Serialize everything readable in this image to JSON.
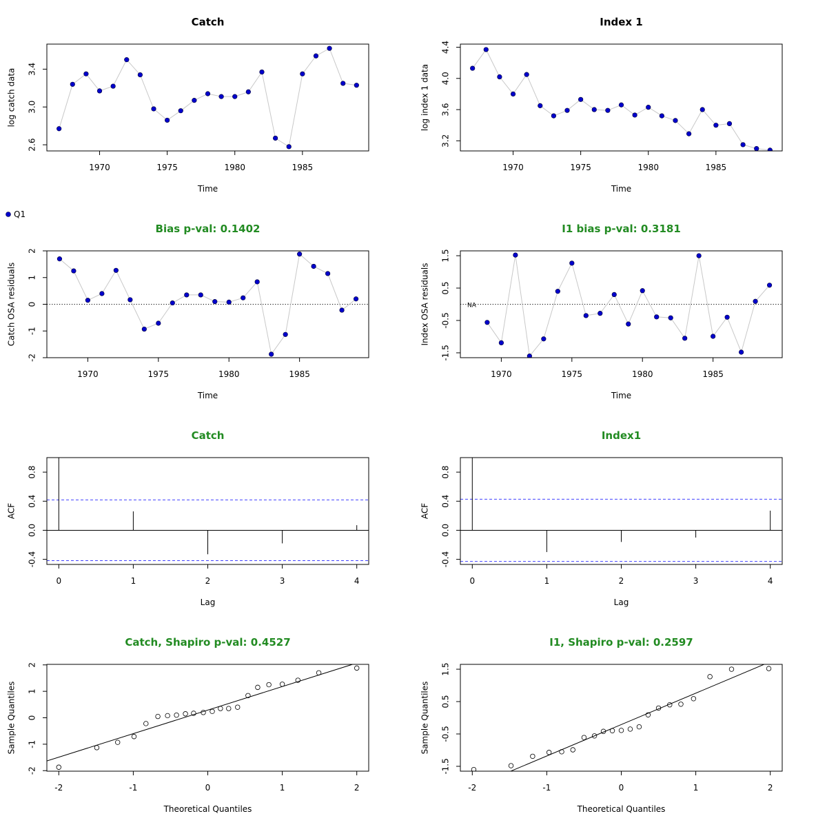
{
  "colors": {
    "point_fill": "#0000cc",
    "line": "#c8c8c8",
    "title_green": "#228b22",
    "ci_blue": "#4040ff",
    "axis": "#000000"
  },
  "legend": {
    "label": "Q1"
  },
  "chart_data": [
    {
      "id": "catch-series",
      "type": "line",
      "title": "Catch",
      "title_color": "black",
      "xlabel": "Time",
      "ylabel": "log catch data",
      "xlim": [
        1966.1,
        1989.9
      ],
      "ylim": [
        2.535,
        3.665
      ],
      "xticks": [
        1970,
        1975,
        1980,
        1985
      ],
      "xtick_labels": [
        "1970",
        "1975",
        "1980",
        "1985"
      ],
      "yticks": [
        2.6,
        3.0,
        3.4
      ],
      "ytick_labels": [
        "2.6",
        "3.0",
        "3.4"
      ],
      "x": [
        1967,
        1968,
        1969,
        1970,
        1971,
        1972,
        1973,
        1974,
        1975,
        1976,
        1977,
        1978,
        1979,
        1980,
        1981,
        1982,
        1983,
        1984,
        1985,
        1986,
        1987,
        1988,
        1989
      ],
      "values": [
        2.77,
        3.24,
        3.35,
        3.17,
        3.22,
        3.5,
        3.34,
        2.98,
        2.86,
        2.96,
        3.07,
        3.14,
        3.11,
        3.11,
        3.16,
        3.37,
        2.67,
        2.58,
        3.35,
        3.54,
        3.62,
        3.25,
        3.23
      ]
    },
    {
      "id": "index1-series",
      "type": "line",
      "title": "Index 1",
      "title_color": "black",
      "xlabel": "Time",
      "ylabel": "log index 1 data",
      "xlim": [
        1966.1,
        1989.9
      ],
      "ylim": [
        3.07,
        4.44
      ],
      "xticks": [
        1970,
        1975,
        1980,
        1985
      ],
      "xtick_labels": [
        "1970",
        "1975",
        "1980",
        "1985"
      ],
      "yticks": [
        3.2,
        3.6,
        4.0,
        4.4
      ],
      "ytick_labels": [
        "3.2",
        "3.6",
        "4.0",
        "4.4"
      ],
      "x": [
        1967,
        1968,
        1969,
        1970,
        1971,
        1972,
        1973,
        1974,
        1975,
        1976,
        1977,
        1978,
        1979,
        1980,
        1981,
        1982,
        1983,
        1984,
        1985,
        1986,
        1987,
        1988,
        1989
      ],
      "values": [
        4.13,
        4.37,
        4.02,
        3.8,
        4.05,
        3.65,
        3.52,
        3.59,
        3.73,
        3.6,
        3.59,
        3.66,
        3.53,
        3.63,
        3.52,
        3.46,
        3.29,
        3.6,
        3.4,
        3.42,
        3.15,
        3.1,
        3.08
      ]
    },
    {
      "id": "catch-resid",
      "type": "line",
      "title": "Bias p-val: 0.1402",
      "title_color": "green",
      "xlabel": "Time",
      "ylabel": "Catch OSA residuals",
      "xlim": [
        1967.1,
        1989.9
      ],
      "ylim": [
        -2.0,
        2.0
      ],
      "xticks": [
        1970,
        1975,
        1980,
        1985
      ],
      "xtick_labels": [
        "1970",
        "1975",
        "1980",
        "1985"
      ],
      "yticks": [
        -2,
        -1,
        0,
        1,
        2
      ],
      "ytick_labels": [
        "-2",
        "-1",
        "0",
        "1",
        "2"
      ],
      "hline": 0,
      "x": [
        1968,
        1969,
        1970,
        1971,
        1972,
        1973,
        1974,
        1975,
        1976,
        1977,
        1978,
        1979,
        1980,
        1981,
        1982,
        1983,
        1984,
        1985,
        1986,
        1987,
        1988,
        1989
      ],
      "values": [
        1.7,
        1.25,
        0.15,
        0.4,
        1.27,
        0.17,
        -0.93,
        -0.71,
        0.05,
        0.35,
        0.35,
        0.1,
        0.08,
        0.24,
        0.84,
        -1.87,
        -1.13,
        1.88,
        1.42,
        1.15,
        -0.22,
        0.2
      ]
    },
    {
      "id": "index-resid",
      "type": "line",
      "title": "I1 bias p-val: 0.3181",
      "title_color": "green",
      "xlabel": "Time",
      "ylabel": "Index OSA residuals",
      "xlim": [
        1967.1,
        1989.9
      ],
      "ylim": [
        -1.65,
        1.65
      ],
      "xticks": [
        1970,
        1975,
        1980,
        1985
      ],
      "xtick_labels": [
        "1970",
        "1975",
        "1980",
        "1985"
      ],
      "yticks": [
        -1.5,
        -0.5,
        0.5,
        1.5
      ],
      "ytick_labels": [
        "-1.5",
        "-0.5",
        "0.5",
        "1.5"
      ],
      "hline": 0,
      "na_label": "NA",
      "x": [
        1969,
        1970,
        1971,
        1972,
        1973,
        1974,
        1975,
        1976,
        1977,
        1978,
        1979,
        1980,
        1981,
        1982,
        1983,
        1984,
        1985,
        1986,
        1987,
        1988,
        1989
      ],
      "values": [
        -0.56,
        -1.19,
        1.52,
        -1.6,
        -1.07,
        0.4,
        1.27,
        -0.35,
        -0.28,
        0.3,
        -0.61,
        0.42,
        -0.39,
        -0.42,
        -1.05,
        1.5,
        -0.99,
        -0.4,
        -1.48,
        0.09,
        0.59
      ]
    },
    {
      "id": "catch-acf",
      "type": "bar",
      "title": "Catch",
      "title_color": "green",
      "xlabel": "Lag",
      "ylabel": "ACF",
      "xlim": [
        -0.16,
        4.16
      ],
      "ylim": [
        -0.47,
        1.0
      ],
      "xticks": [
        0,
        1,
        2,
        3,
        4
      ],
      "xtick_labels": [
        "0",
        "1",
        "2",
        "3",
        "4"
      ],
      "yticks": [
        -0.4,
        0.0,
        0.4,
        0.8
      ],
      "ytick_labels": [
        "-0.4",
        "0.0",
        "0.4",
        "0.8"
      ],
      "ci": 0.418,
      "x": [
        0,
        1,
        2,
        3,
        4
      ],
      "values": [
        1.0,
        0.26,
        -0.33,
        -0.18,
        0.07
      ]
    },
    {
      "id": "index-acf",
      "type": "bar",
      "title": "Index1",
      "title_color": "green",
      "xlabel": "Lag",
      "ylabel": "ACF",
      "xlim": [
        -0.16,
        4.16
      ],
      "ylim": [
        -0.47,
        1.0
      ],
      "xticks": [
        0,
        1,
        2,
        3,
        4
      ],
      "xtick_labels": [
        "0",
        "1",
        "2",
        "3",
        "4"
      ],
      "yticks": [
        -0.4,
        0.0,
        0.4,
        0.8
      ],
      "ytick_labels": [
        "-0.4",
        "0.0",
        "0.4",
        "0.8"
      ],
      "ci": 0.428,
      "x": [
        0,
        1,
        2,
        3,
        4
      ],
      "values": [
        1.0,
        -0.3,
        -0.16,
        -0.1,
        0.27
      ]
    },
    {
      "id": "catch-qq",
      "type": "scatter",
      "title": "Catch, Shapiro p-val: 0.4527",
      "title_color": "green",
      "xlabel": "Theoretical Quantiles",
      "ylabel": "Sample Quantiles",
      "xlim": [
        -2.16,
        2.16
      ],
      "ylim": [
        -2.02,
        2.02
      ],
      "xticks": [
        -2,
        -1,
        0,
        1,
        2
      ],
      "xtick_labels": [
        "-2",
        "-1",
        "0",
        "1",
        "2"
      ],
      "yticks": [
        -2,
        -1,
        0,
        1,
        2
      ],
      "ytick_labels": [
        "-2",
        "-1",
        "0",
        "1",
        "2"
      ],
      "qq_line": {
        "intercept": 0.29,
        "slope": 0.89
      },
      "x": [
        -2.0,
        -1.49,
        -1.21,
        -0.99,
        -0.83,
        -0.67,
        -0.54,
        -0.42,
        -0.3,
        -0.19,
        -0.06,
        0.06,
        0.17,
        0.28,
        0.4,
        0.54,
        0.67,
        0.82,
        1.0,
        1.21,
        1.49,
        2.0
      ],
      "values": [
        -1.87,
        -1.13,
        -0.93,
        -0.71,
        -0.22,
        0.05,
        0.08,
        0.1,
        0.15,
        0.17,
        0.2,
        0.24,
        0.35,
        0.35,
        0.4,
        0.84,
        1.15,
        1.25,
        1.27,
        1.42,
        1.7,
        1.88
      ]
    },
    {
      "id": "index-qq",
      "type": "scatter",
      "title": "I1, Shapiro p-val: 0.2597",
      "title_color": "green",
      "xlabel": "Theoretical Quantiles",
      "ylabel": "Sample Quantiles",
      "xlim": [
        -2.16,
        2.16
      ],
      "ylim": [
        -1.65,
        1.65
      ],
      "xticks": [
        -2,
        -1,
        0,
        1,
        2
      ],
      "xtick_labels": [
        "-2",
        "-1",
        "0",
        "1",
        "2"
      ],
      "yticks": [
        -1.5,
        -0.5,
        0.5,
        1.5
      ],
      "ytick_labels": [
        "-1.5",
        "-0.5",
        "0.5",
        "1.5"
      ],
      "qq_line": {
        "intercept": -0.21,
        "slope": 0.97
      },
      "x": [
        -1.98,
        -1.48,
        -1.19,
        -0.97,
        -0.8,
        -0.65,
        -0.5,
        -0.36,
        -0.24,
        -0.12,
        0.0,
        0.12,
        0.24,
        0.36,
        0.5,
        0.65,
        0.8,
        0.97,
        1.19,
        1.48,
        1.98
      ],
      "values": [
        -1.6,
        -1.48,
        -1.19,
        -1.07,
        -1.05,
        -0.99,
        -0.61,
        -0.56,
        -0.42,
        -0.4,
        -0.39,
        -0.35,
        -0.28,
        0.09,
        0.3,
        0.4,
        0.42,
        0.59,
        1.27,
        1.5,
        1.52
      ]
    }
  ]
}
